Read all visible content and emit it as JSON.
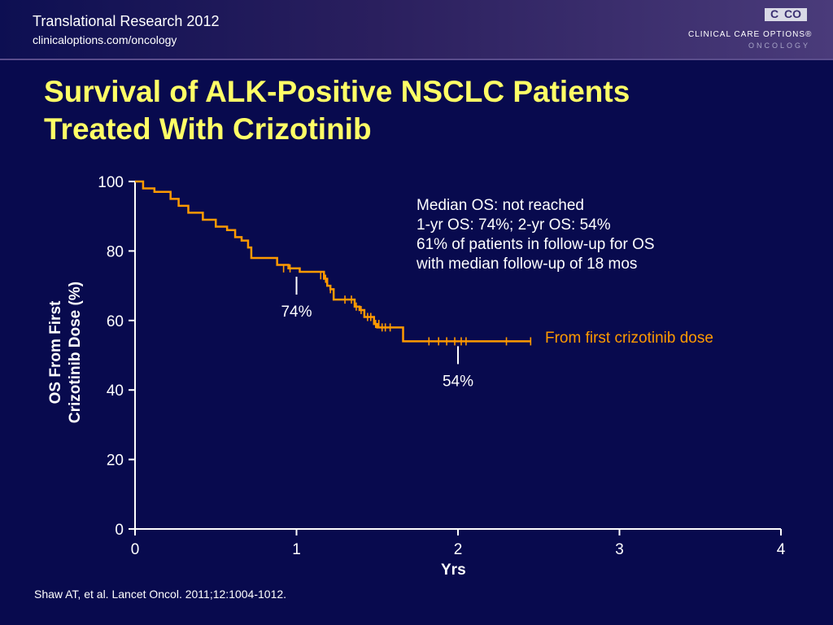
{
  "header": {
    "title": "Translational Research 2012",
    "url": "clinicaloptions.com/oncology",
    "logo": {
      "mark_c": "C",
      "mark_co": "CO",
      "name": "CLINICAL CARE OPTIONS®",
      "sub": "ONCOLOGY"
    }
  },
  "slide": {
    "title_line1": "Survival of ALK-Positive NSCLC Patients",
    "title_line2": "Treated With Crizotinib",
    "footnote": "Shaw AT, et al. Lancet Oncol. 2011;12:1004-1012."
  },
  "chart_data": {
    "type": "line",
    "subtype": "kaplan-meier",
    "xlabel": "Yrs",
    "ylabel_line1": "OS From First",
    "ylabel_line2": "Crizotinib Dose (%)",
    "xlim": [
      0,
      4
    ],
    "ylim": [
      0,
      100
    ],
    "x_ticks": [
      0,
      1,
      2,
      3,
      4
    ],
    "y_ticks": [
      0,
      20,
      40,
      60,
      80,
      100
    ],
    "grid": false,
    "series": [
      {
        "name": "From first crizotinib dose",
        "color": "#ff9a00",
        "step_points": [
          [
            0,
            100
          ],
          [
            0.05,
            98
          ],
          [
            0.12,
            97
          ],
          [
            0.22,
            95
          ],
          [
            0.27,
            93
          ],
          [
            0.33,
            91
          ],
          [
            0.42,
            89
          ],
          [
            0.5,
            87
          ],
          [
            0.57,
            86
          ],
          [
            0.62,
            84
          ],
          [
            0.66,
            83
          ],
          [
            0.7,
            81
          ],
          [
            0.72,
            78
          ],
          [
            0.88,
            76
          ],
          [
            0.95,
            75
          ],
          [
            1.02,
            74
          ],
          [
            1.17,
            72
          ],
          [
            1.19,
            70
          ],
          [
            1.21,
            69
          ],
          [
            1.23,
            66
          ],
          [
            1.36,
            64
          ],
          [
            1.39,
            63
          ],
          [
            1.42,
            61
          ],
          [
            1.48,
            59
          ],
          [
            1.5,
            58
          ],
          [
            1.66,
            54
          ],
          [
            2.45,
            54
          ]
        ],
        "censored": [
          [
            0.92,
            75
          ],
          [
            0.96,
            75
          ],
          [
            1.15,
            73
          ],
          [
            1.18,
            72
          ],
          [
            1.21,
            69
          ],
          [
            1.3,
            66
          ],
          [
            1.34,
            66
          ],
          [
            1.37,
            64
          ],
          [
            1.4,
            63
          ],
          [
            1.44,
            61
          ],
          [
            1.46,
            61
          ],
          [
            1.49,
            59
          ],
          [
            1.51,
            59
          ],
          [
            1.53,
            58
          ],
          [
            1.55,
            58
          ],
          [
            1.58,
            58
          ],
          [
            1.82,
            54
          ],
          [
            1.88,
            54
          ],
          [
            1.93,
            54
          ],
          [
            1.98,
            54
          ],
          [
            2.02,
            54
          ],
          [
            2.05,
            54
          ],
          [
            2.3,
            54
          ],
          [
            2.45,
            54
          ]
        ]
      }
    ],
    "annotations": [
      {
        "x": 1,
        "y": 74,
        "label": "74%"
      },
      {
        "x": 2,
        "y": 54,
        "label": "54%"
      }
    ],
    "notes": [
      "Median OS: not reached",
      "1-yr OS: 74%; 2-yr OS: 54%",
      "61% of patients in follow-up for OS",
      "with median follow-up of 18 mos"
    ]
  }
}
